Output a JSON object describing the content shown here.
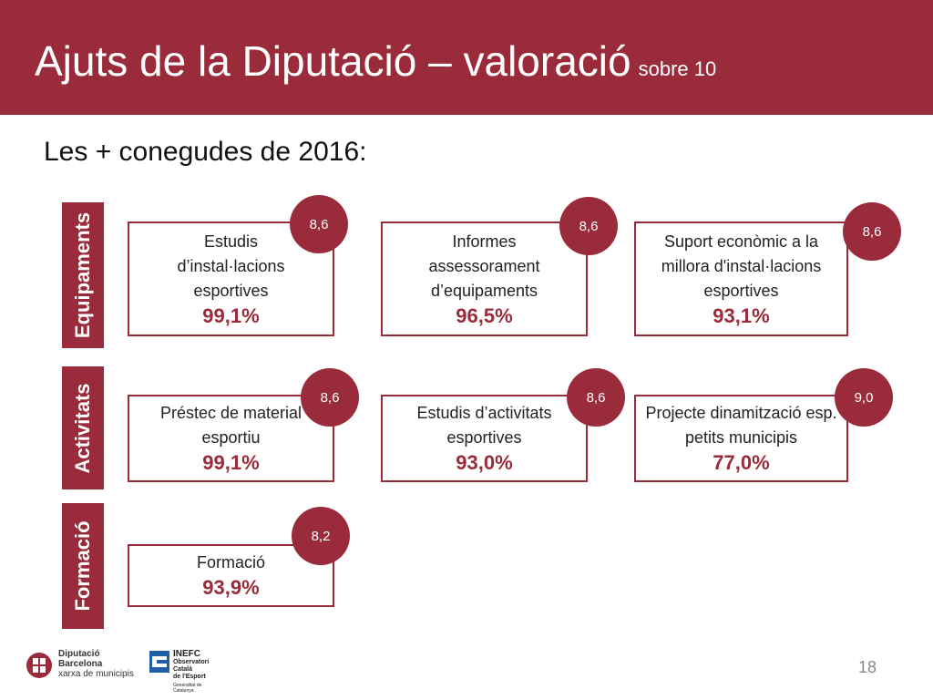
{
  "header": {
    "title": "Ajuts de la Diputació – valoració",
    "title_suffix": "sobre 10"
  },
  "subtitle": "Les + conegudes de 2016:",
  "categories": {
    "equipaments": "Equipaments",
    "activitats": "Activitats",
    "formacio": "Formació"
  },
  "cards": [
    {
      "label": "Estudis d’instal·lacions esportives",
      "percent": "99,1%",
      "score": "8,6"
    },
    {
      "label": "Informes assessorament d’equipaments",
      "percent": "96,5%",
      "score": "8,6"
    },
    {
      "label": "Suport econòmic a la millora d'instal·lacions esportives",
      "percent": "93,1%",
      "score": "8,6"
    },
    {
      "label": "Préstec de material esportiu",
      "percent": "99,1%",
      "score": "8,6"
    },
    {
      "label": "Estudis d’activitats esportives",
      "percent": "93,0%",
      "score": "8,6"
    },
    {
      "label": "Projecte dinamització esp. petits municipis",
      "percent": "77,0%",
      "score": "9,0"
    },
    {
      "label": "Formació",
      "percent": "93,9%",
      "score": "8,2"
    }
  ],
  "footer": {
    "logo1_lines": [
      "Diputació",
      "Barcelona",
      "xarxa de municipis"
    ],
    "logo2_lines": [
      "INEFC",
      "Observatori",
      "Català",
      "de l'Esport"
    ],
    "logo2_sub": "Generalitat de Catalunya",
    "page_number": "18"
  },
  "colors": {
    "accent": "#992b3a"
  }
}
